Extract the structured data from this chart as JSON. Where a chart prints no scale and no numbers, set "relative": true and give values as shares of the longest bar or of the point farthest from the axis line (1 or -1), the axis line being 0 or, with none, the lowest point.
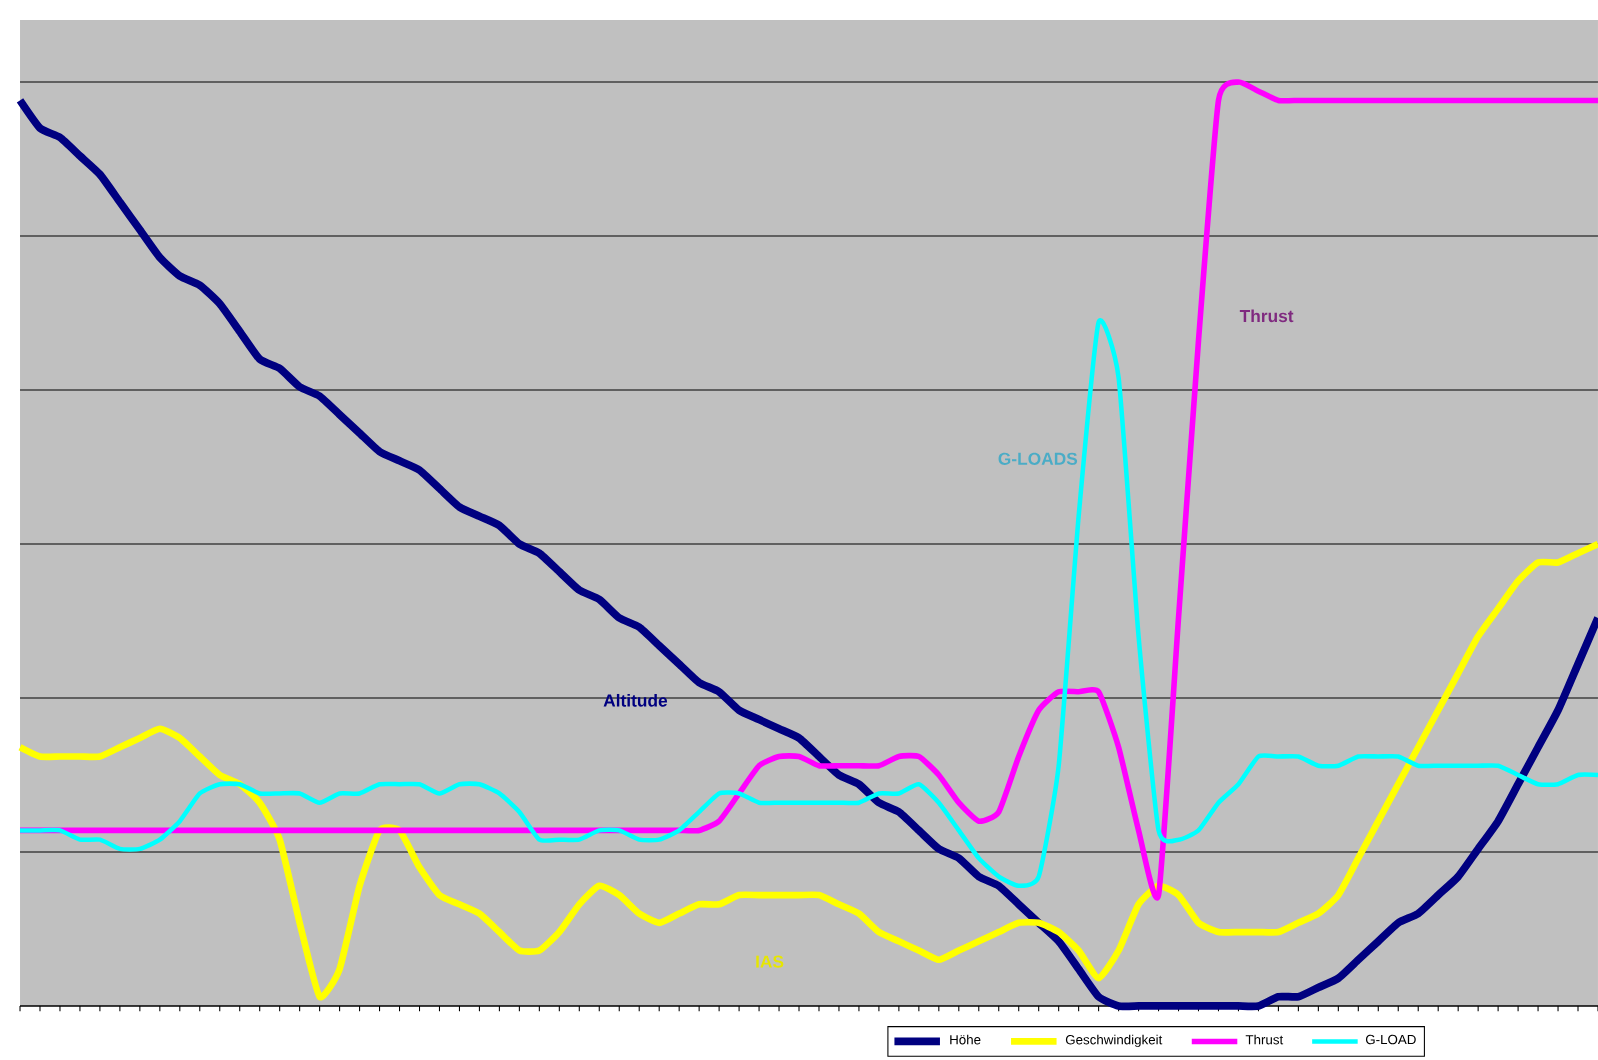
{
  "chart_data": {
    "type": "line",
    "relative": true,
    "grid": "y",
    "legend": "bottom",
    "marker": "none",
    "line_style": "solid",
    "categories": [
      null,
      null,
      null,
      null,
      null,
      null,
      null,
      null,
      null,
      null,
      null,
      null,
      null,
      null,
      null,
      null,
      null,
      null,
      null,
      null,
      null,
      null,
      null,
      null,
      null,
      null,
      null,
      null,
      null,
      null,
      null,
      null,
      null,
      null,
      null,
      null,
      null,
      null,
      null,
      null,
      null,
      null,
      null,
      null,
      null,
      null,
      null,
      null,
      null,
      null,
      null,
      null,
      null,
      null,
      null,
      null,
      null,
      null,
      null,
      null,
      null,
      null,
      null,
      null,
      null,
      null,
      null,
      null,
      null,
      null,
      null,
      null,
      null,
      null,
      null,
      null,
      null,
      null,
      null,
      null
    ],
    "series": [
      {
        "name": "Höhe",
        "color": "#000080",
        "values": [
          0.98,
          0.95,
          0.94,
          0.92,
          0.9,
          0.87,
          0.84,
          0.81,
          0.79,
          0.78,
          0.76,
          0.73,
          0.7,
          0.69,
          0.67,
          0.66,
          0.64,
          0.62,
          0.6,
          0.59,
          0.58,
          0.56,
          0.54,
          0.53,
          0.52,
          0.5,
          0.49,
          0.47,
          0.45,
          0.44,
          0.42,
          0.41,
          0.39,
          0.37,
          0.35,
          0.34,
          0.32,
          0.31,
          0.3,
          0.29,
          0.27,
          0.25,
          0.24,
          0.22,
          0.21,
          0.19,
          0.17,
          0.16,
          0.14,
          0.13,
          0.11,
          0.09,
          0.07,
          0.04,
          0.01,
          0,
          0,
          0,
          0,
          0,
          0,
          0,
          0,
          0.01,
          0.01,
          0.02,
          0.03,
          0.05,
          0.07,
          0.09,
          0.1,
          0.12,
          0.14,
          0.17,
          0.2,
          0.24,
          0.28,
          0.32,
          0.37,
          0.42
        ]
      },
      {
        "name": "Geschwindigkeit",
        "color": "#ffff00",
        "values": [
          0.28,
          0.27,
          0.27,
          0.27,
          0.27,
          0.28,
          0.29,
          0.3,
          0.29,
          0.27,
          0.25,
          0.24,
          0.22,
          0.18,
          0.09,
          0.01,
          0.04,
          0.13,
          0.19,
          0.19,
          0.15,
          0.12,
          0.11,
          0.1,
          0.08,
          0.06,
          0.06,
          0.08,
          0.11,
          0.13,
          0.12,
          0.1,
          0.09,
          0.1,
          0.11,
          0.11,
          0.12,
          0.12,
          0.12,
          0.12,
          0.12,
          0.11,
          0.1,
          0.08,
          0.07,
          0.06,
          0.05,
          0.06,
          0.07,
          0.08,
          0.09,
          0.09,
          0.08,
          0.06,
          0.03,
          0.06,
          0.11,
          0.13,
          0.12,
          0.09,
          0.08,
          0.08,
          0.08,
          0.08,
          0.09,
          0.1,
          0.12,
          0.16,
          0.2,
          0.24,
          0.28,
          0.32,
          0.36,
          0.4,
          0.43,
          0.46,
          0.48,
          0.48,
          0.49,
          0.5
        ]
      },
      {
        "name": "Thrust",
        "color": "#ff00ff",
        "values": [
          0.19,
          0.19,
          0.19,
          0.19,
          0.19,
          0.19,
          0.19,
          0.19,
          0.19,
          0.19,
          0.19,
          0.19,
          0.19,
          0.19,
          0.19,
          0.19,
          0.19,
          0.19,
          0.19,
          0.19,
          0.19,
          0.19,
          0.19,
          0.19,
          0.19,
          0.19,
          0.19,
          0.19,
          0.19,
          0.19,
          0.19,
          0.19,
          0.19,
          0.19,
          0.19,
          0.2,
          0.23,
          0.26,
          0.27,
          0.27,
          0.26,
          0.26,
          0.26,
          0.26,
          0.27,
          0.27,
          0.25,
          0.22,
          0.2,
          0.21,
          0.27,
          0.32,
          0.34,
          0.34,
          0.34,
          0.28,
          0.19,
          0.12,
          0.42,
          0.72,
          0.98,
          1.0,
          0.99,
          0.98,
          0.98,
          0.98,
          0.98,
          0.98,
          0.98,
          0.98,
          0.98,
          0.98,
          0.98,
          0.98,
          0.98,
          0.98,
          0.98,
          0.98,
          0.98,
          0.98
        ]
      },
      {
        "name": "G-LOAD",
        "color": "#00ffff",
        "values": [
          0.19,
          0.19,
          0.19,
          0.18,
          0.18,
          0.17,
          0.17,
          0.18,
          0.2,
          0.23,
          0.24,
          0.24,
          0.23,
          0.23,
          0.23,
          0.22,
          0.23,
          0.23,
          0.24,
          0.24,
          0.24,
          0.23,
          0.24,
          0.24,
          0.23,
          0.21,
          0.18,
          0.18,
          0.18,
          0.19,
          0.19,
          0.18,
          0.18,
          0.19,
          0.21,
          0.23,
          0.23,
          0.22,
          0.22,
          0.22,
          0.22,
          0.22,
          0.22,
          0.23,
          0.23,
          0.24,
          0.22,
          0.19,
          0.16,
          0.14,
          0.13,
          0.14,
          0.26,
          0.53,
          0.74,
          0.68,
          0.4,
          0.19,
          0.18,
          0.19,
          0.22,
          0.24,
          0.27,
          0.27,
          0.27,
          0.26,
          0.26,
          0.27,
          0.27,
          0.27,
          0.26,
          0.26,
          0.26,
          0.26,
          0.26,
          0.25,
          0.24,
          0.24,
          0.25,
          0.25
        ]
      }
    ],
    "annotations": [
      "Altitude",
      "IAS",
      "Thrust",
      "G-LOADS"
    ]
  }
}
